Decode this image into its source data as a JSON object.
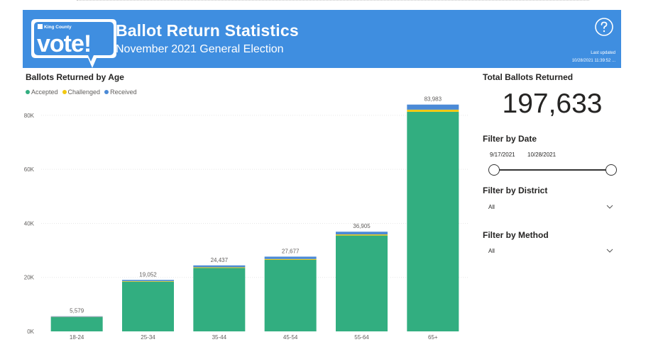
{
  "header": {
    "logo_small_text": "King County",
    "logo_big_text": "vote!",
    "title": "Ballot Return Statistics",
    "subtitle": "November 2021 General Election",
    "last_updated_label": "Last updated",
    "last_updated_value": "10/28/2021 11:39:52 ..."
  },
  "colors": {
    "banner": "#3f8ee0",
    "accepted": "#32ae80",
    "challenged": "#f2c811",
    "received": "#4b8ad6"
  },
  "icons": {
    "help": "help-circle-icon",
    "chevron": "chevron-down-icon"
  },
  "chart": {
    "title": "Ballots Returned by Age"
  },
  "chart_data": {
    "type": "bar",
    "stacked": true,
    "title": "Ballots Returned by Age",
    "categories": [
      "18-24",
      "25-34",
      "35-44",
      "45-54",
      "55-64",
      "65+"
    ],
    "series": [
      {
        "name": "Accepted",
        "color": "#32ae80",
        "values": [
          5250,
          18400,
          23500,
          26500,
          35500,
          81300
        ]
      },
      {
        "name": "Challenged",
        "color": "#f2c811",
        "values": [
          100,
          200,
          250,
          300,
          400,
          800
        ]
      },
      {
        "name": "Received",
        "color": "#4b8ad6",
        "values": [
          229,
          452,
          687,
          877,
          1005,
          1883
        ]
      }
    ],
    "totals": [
      "5,579",
      "19,052",
      "24,437",
      "27,677",
      "36,905",
      "83,983"
    ],
    "yticks": [
      {
        "value": 0,
        "label": "0K"
      },
      {
        "value": 20000,
        "label": "20K"
      },
      {
        "value": 40000,
        "label": "40K"
      },
      {
        "value": 60000,
        "label": "60K"
      },
      {
        "value": 80000,
        "label": "80K"
      }
    ],
    "ylim": [
      0,
      86000
    ],
    "legend_position": "top-left",
    "grid": true
  },
  "summary": {
    "total_label": "Total Ballots Returned",
    "total_value": "197,633"
  },
  "filters": {
    "date": {
      "label": "Filter by Date",
      "start": "9/17/2021",
      "end": "10/28/2021"
    },
    "district": {
      "label": "Filter by District",
      "value": "All"
    },
    "method": {
      "label": "Filter by Method",
      "value": "All"
    }
  }
}
